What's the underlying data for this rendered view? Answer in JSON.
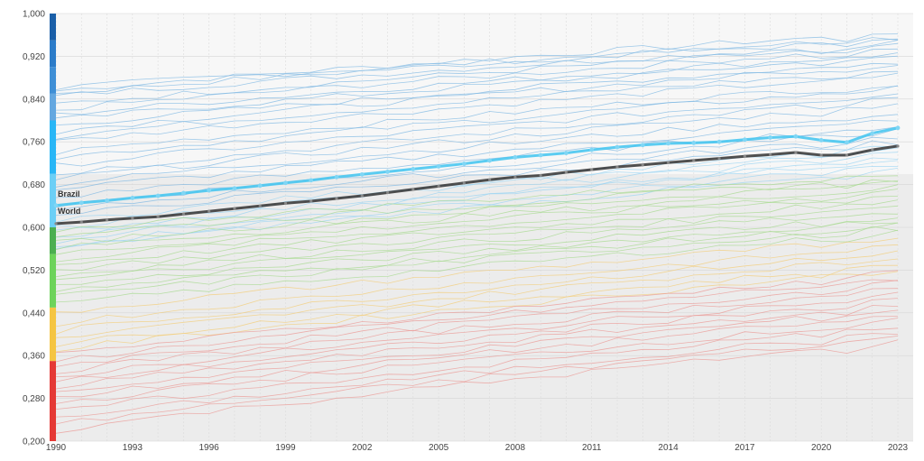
{
  "chart_data": {
    "type": "line",
    "x": [
      1990,
      1991,
      1992,
      1993,
      1994,
      1995,
      1996,
      1997,
      1998,
      1999,
      2000,
      2001,
      2002,
      2003,
      2004,
      2005,
      2006,
      2007,
      2008,
      2009,
      2010,
      2011,
      2012,
      2013,
      2014,
      2015,
      2016,
      2017,
      2018,
      2019,
      2020,
      2021,
      2022,
      2023
    ],
    "xticks": [
      "1990",
      "1993",
      "1996",
      "1999",
      "2002",
      "2005",
      "2008",
      "2011",
      "2014",
      "2017",
      "2020",
      "2023"
    ],
    "yticks": [
      "0,200",
      "0,280",
      "0,360",
      "0,440",
      "0,520",
      "0,600",
      "0,680",
      "0,760",
      "0,840",
      "0,920",
      "1,000"
    ],
    "ylim": [
      0.2,
      1.0
    ],
    "xlim": [
      1990,
      2023
    ],
    "grid": true,
    "highlighted_series": [
      {
        "name": "Brazil",
        "color": "#40c4f0",
        "values": [
          0.641,
          0.646,
          0.65,
          0.655,
          0.659,
          0.664,
          0.669,
          0.673,
          0.678,
          0.683,
          0.688,
          0.694,
          0.699,
          0.704,
          0.709,
          0.714,
          0.719,
          0.725,
          0.731,
          0.735,
          0.739,
          0.745,
          0.75,
          0.754,
          0.757,
          0.758,
          0.76,
          0.764,
          0.768,
          0.77,
          0.763,
          0.759,
          0.776,
          0.786
        ]
      },
      {
        "name": "World",
        "color": "#333333",
        "values": [
          0.607,
          0.61,
          0.614,
          0.617,
          0.62,
          0.625,
          0.63,
          0.635,
          0.64,
          0.645,
          0.649,
          0.654,
          0.659,
          0.665,
          0.671,
          0.677,
          0.683,
          0.689,
          0.694,
          0.697,
          0.703,
          0.708,
          0.713,
          0.717,
          0.721,
          0.725,
          0.729,
          0.733,
          0.736,
          0.74,
          0.735,
          0.735,
          0.745,
          0.752
        ]
      }
    ],
    "background_series": [
      {
        "color": "#7fb8e3",
        "start": 0.855,
        "end": 0.965
      },
      {
        "color": "#7fb8e3",
        "start": 0.85,
        "end": 0.955
      },
      {
        "color": "#7fb8e3",
        "start": 0.86,
        "end": 0.95
      },
      {
        "color": "#7fb8e3",
        "start": 0.845,
        "end": 0.945
      },
      {
        "color": "#7fb8e3",
        "start": 0.83,
        "end": 0.94
      },
      {
        "color": "#7fb8e3",
        "start": 0.82,
        "end": 0.935
      },
      {
        "color": "#7fb8e3",
        "start": 0.81,
        "end": 0.925
      },
      {
        "color": "#7fb8e3",
        "start": 0.8,
        "end": 0.92
      },
      {
        "color": "#7fb8e3",
        "start": 0.79,
        "end": 0.91
      },
      {
        "color": "#7fb8e3",
        "start": 0.78,
        "end": 0.905
      },
      {
        "color": "#7fb8e3",
        "start": 0.77,
        "end": 0.895
      },
      {
        "color": "#7fb8e3",
        "start": 0.76,
        "end": 0.885
      },
      {
        "color": "#7fb8e3",
        "start": 0.74,
        "end": 0.87
      },
      {
        "color": "#7fb8e3",
        "start": 0.73,
        "end": 0.86
      },
      {
        "color": "#7fb8e3",
        "start": 0.715,
        "end": 0.85
      },
      {
        "color": "#7fb8e3",
        "start": 0.7,
        "end": 0.84
      },
      {
        "color": "#7fb8e3",
        "start": 0.69,
        "end": 0.83
      },
      {
        "color": "#7fb8e3",
        "start": 0.68,
        "end": 0.815
      },
      {
        "color": "#7fb8e3",
        "start": 0.67,
        "end": 0.8
      },
      {
        "color": "#7fb8e3",
        "start": 0.655,
        "end": 0.79
      },
      {
        "color": "#7fb8e3",
        "start": 0.64,
        "end": 0.78
      },
      {
        "color": "#7fb8e3",
        "start": 0.63,
        "end": 0.77
      },
      {
        "color": "#7fb8e3",
        "start": 0.62,
        "end": 0.76
      },
      {
        "color": "#9ad4f3",
        "start": 0.61,
        "end": 0.75
      },
      {
        "color": "#9ad4f3",
        "start": 0.6,
        "end": 0.745
      },
      {
        "color": "#9ad4f3",
        "start": 0.59,
        "end": 0.738
      },
      {
        "color": "#9ad4f3",
        "start": 0.58,
        "end": 0.73
      },
      {
        "color": "#9ad4f3",
        "start": 0.575,
        "end": 0.725
      },
      {
        "color": "#9ad4f3",
        "start": 0.565,
        "end": 0.715
      },
      {
        "color": "#9ad4f3",
        "start": 0.56,
        "end": 0.705
      },
      {
        "color": "#a7d98f",
        "start": 0.595,
        "end": 0.7
      },
      {
        "color": "#a7d98f",
        "start": 0.585,
        "end": 0.69
      },
      {
        "color": "#a7d98f",
        "start": 0.57,
        "end": 0.685
      },
      {
        "color": "#a7d98f",
        "start": 0.56,
        "end": 0.675
      },
      {
        "color": "#a7d98f",
        "start": 0.55,
        "end": 0.668
      },
      {
        "color": "#a7d98f",
        "start": 0.54,
        "end": 0.66
      },
      {
        "color": "#a7d98f",
        "start": 0.53,
        "end": 0.65
      },
      {
        "color": "#a7d98f",
        "start": 0.52,
        "end": 0.64
      },
      {
        "color": "#a7d98f",
        "start": 0.51,
        "end": 0.63
      },
      {
        "color": "#a7d98f",
        "start": 0.5,
        "end": 0.62
      },
      {
        "color": "#a7d98f",
        "start": 0.49,
        "end": 0.612
      },
      {
        "color": "#a7d98f",
        "start": 0.48,
        "end": 0.605
      },
      {
        "color": "#a7d98f",
        "start": 0.47,
        "end": 0.6
      },
      {
        "color": "#a7d98f",
        "start": 0.455,
        "end": 0.59
      },
      {
        "color": "#f3cd7a",
        "start": 0.44,
        "end": 0.58
      },
      {
        "color": "#f3cd7a",
        "start": 0.42,
        "end": 0.565
      },
      {
        "color": "#f3cd7a",
        "start": 0.405,
        "end": 0.555
      },
      {
        "color": "#f3cd7a",
        "start": 0.39,
        "end": 0.545
      },
      {
        "color": "#f3cd7a",
        "start": 0.38,
        "end": 0.53
      },
      {
        "color": "#f3cd7a",
        "start": 0.37,
        "end": 0.52
      },
      {
        "color": "#eb9a95",
        "start": 0.36,
        "end": 0.515
      },
      {
        "color": "#eb9a95",
        "start": 0.35,
        "end": 0.505
      },
      {
        "color": "#eb9a95",
        "start": 0.34,
        "end": 0.495
      },
      {
        "color": "#eb9a95",
        "start": 0.33,
        "end": 0.485
      },
      {
        "color": "#eb9a95",
        "start": 0.32,
        "end": 0.475
      },
      {
        "color": "#eb9a95",
        "start": 0.31,
        "end": 0.465
      },
      {
        "color": "#eb9a95",
        "start": 0.3,
        "end": 0.455
      },
      {
        "color": "#eb9a95",
        "start": 0.29,
        "end": 0.445
      },
      {
        "color": "#eb9a95",
        "start": 0.28,
        "end": 0.435
      },
      {
        "color": "#eb9a95",
        "start": 0.27,
        "end": 0.425
      },
      {
        "color": "#eb9a95",
        "start": 0.255,
        "end": 0.415
      },
      {
        "color": "#eb9a95",
        "start": 0.24,
        "end": 0.405
      },
      {
        "color": "#eb9a95",
        "start": 0.23,
        "end": 0.395
      },
      {
        "color": "#eb9a95",
        "start": 0.22,
        "end": 0.385
      }
    ],
    "color_bands": [
      {
        "from": 0.2,
        "to": 0.35,
        "color": "#e53935"
      },
      {
        "from": 0.35,
        "to": 0.45,
        "color": "#f5c542"
      },
      {
        "from": 0.45,
        "to": 0.55,
        "color": "#6dd35a"
      },
      {
        "from": 0.55,
        "to": 0.6,
        "color": "#4caf50"
      },
      {
        "from": 0.6,
        "to": 0.7,
        "color": "#6ccff6"
      },
      {
        "from": 0.7,
        "to": 0.8,
        "color": "#29b6f6"
      },
      {
        "from": 0.8,
        "to": 0.85,
        "color": "#64a7e0"
      },
      {
        "from": 0.85,
        "to": 0.9,
        "color": "#3f8fd6"
      },
      {
        "from": 0.9,
        "to": 0.95,
        "color": "#2c7cc9"
      },
      {
        "from": 0.95,
        "to": 1.0,
        "color": "#1a5fa8"
      }
    ]
  }
}
